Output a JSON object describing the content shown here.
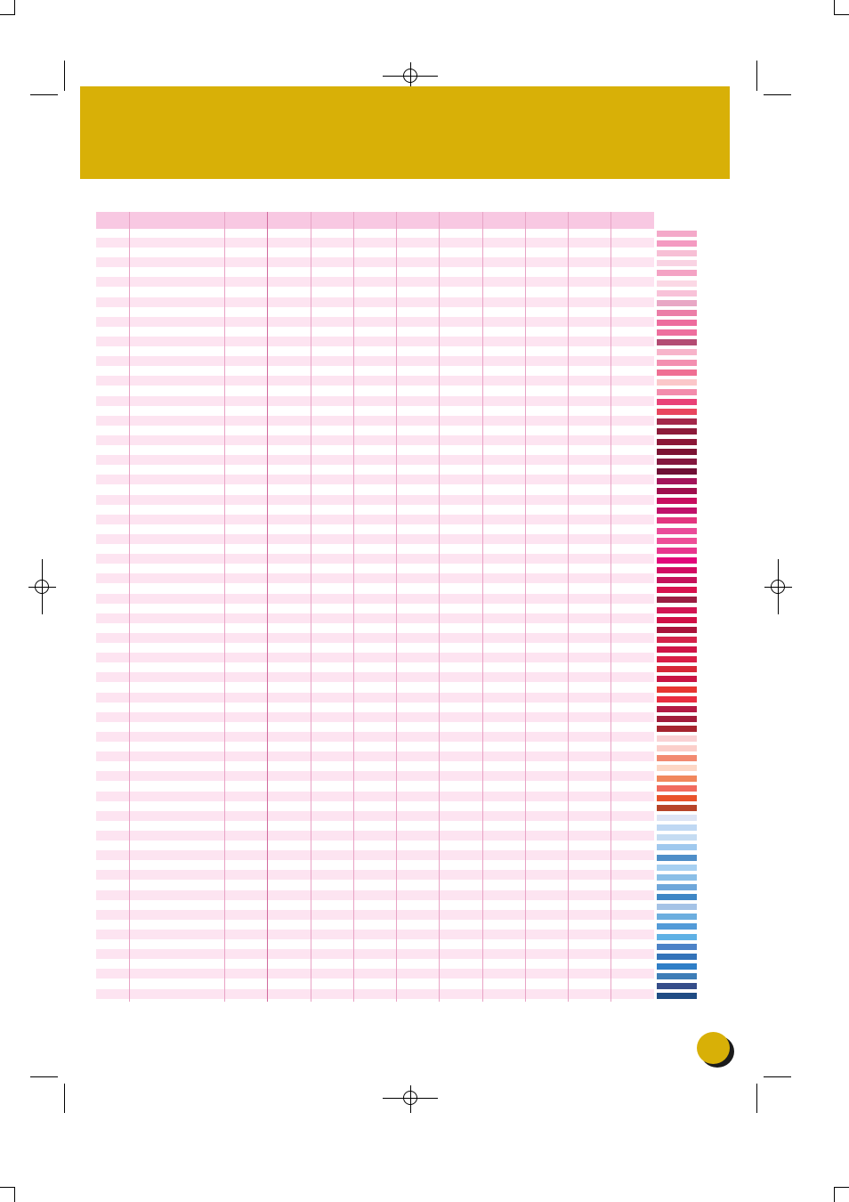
{
  "page": {
    "banner_color": "#d8b007",
    "header_color": "#f8c8e2",
    "row_stripe_color": "#fde4f1",
    "column_rule_color": "#e8a3c5",
    "page_dot_color": "#d8b007"
  },
  "table": {
    "header": "",
    "striped_row_count": 39,
    "column_count": 12
  },
  "swatches": [
    "#f4a9c9",
    "#f49ac1",
    "#f7bfd5",
    "#f9d3e3",
    "#f4a3c4",
    "#fbd8e5",
    "#f8c2d8",
    "#e8a7c5",
    "#eb7ea7",
    "#ed6c9d",
    "#ee6f9e",
    "#b34b73",
    "#f7b4ca",
    "#f38fb0",
    "#ef6f93",
    "#fbc7c9",
    "#f38cac",
    "#e94277",
    "#e9465e",
    "#a3284a",
    "#8c1b3a",
    "#8b1737",
    "#7b1333",
    "#83183f",
    "#6e0f35",
    "#a3135a",
    "#9f0e4d",
    "#c80e60",
    "#c0116a",
    "#e3357f",
    "#ea4b99",
    "#ee4e98",
    "#e8368e",
    "#e2077a",
    "#d20b62",
    "#c5125a",
    "#d8124e",
    "#9a1e42",
    "#d21653",
    "#d01046",
    "#a9133a",
    "#d4234a",
    "#cf1546",
    "#d91f46",
    "#d62837",
    "#c91543",
    "#e73631",
    "#e92d40",
    "#b31a43",
    "#a11c3a",
    "#a5242e",
    "#fad2d4",
    "#fbcfca",
    "#f28a70",
    "#fdd7c5",
    "#f1875c",
    "#f16b5e",
    "#e9532b",
    "#b74428",
    "#dde4f4",
    "#bfd8f3",
    "#c5dcf2",
    "#a0c9ee",
    "#4e8ec8",
    "#a7d0f1",
    "#8bbfe7",
    "#6fa7da",
    "#3e86c5",
    "#a5c3e6",
    "#6caedf",
    "#539bd8",
    "#5fb1e5",
    "#4c82c7",
    "#3373b9",
    "#2f7ec7",
    "#3e7db7",
    "#354d89",
    "#1f4b83"
  ],
  "page_number": ""
}
